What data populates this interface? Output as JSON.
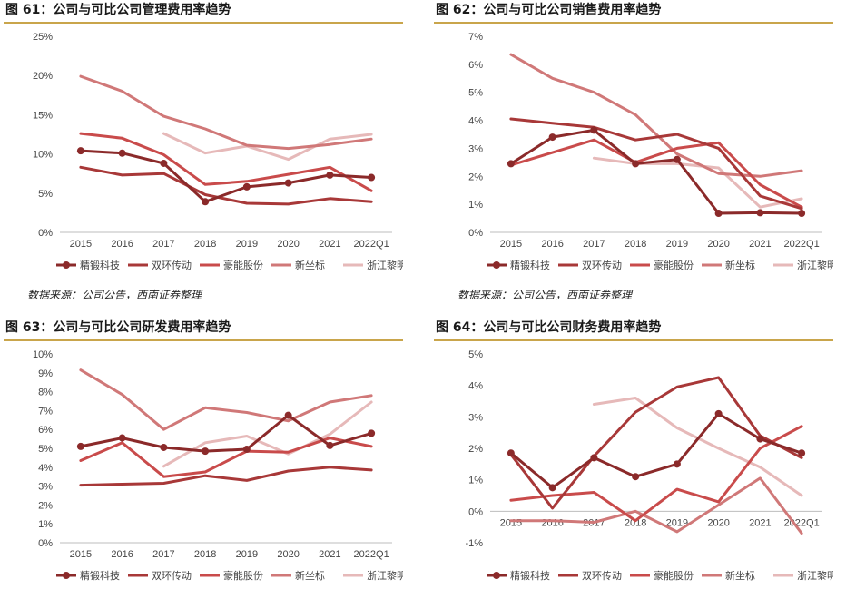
{
  "source_note": "数据来源：公司公告，西南证券整理",
  "series_colors": [
    "#8b2a2a",
    "#a83838",
    "#c94b4b",
    "#d07878",
    "#e6b9b9"
  ],
  "chart_data": [
    {
      "type": "line",
      "title": "图 61：公司与可比公司管理费用率趋势",
      "categories": [
        "2015",
        "2016",
        "2017",
        "2018",
        "2019",
        "2020",
        "2021",
        "2022Q1"
      ],
      "ylim": [
        0,
        25
      ],
      "yticks": [
        "0%",
        "5%",
        "10%",
        "15%",
        "20%",
        "25%"
      ],
      "series": [
        {
          "name": "精锻科技",
          "values": [
            10.4,
            10.1,
            8.8,
            3.9,
            5.8,
            6.3,
            7.3,
            7.0
          ],
          "marker": true
        },
        {
          "name": "双环传动",
          "values": [
            8.3,
            7.3,
            7.5,
            4.8,
            3.7,
            3.6,
            4.3,
            3.9
          ],
          "marker": false
        },
        {
          "name": "豪能股份",
          "values": [
            12.6,
            12.0,
            9.9,
            6.1,
            6.5,
            7.4,
            8.3,
            5.3
          ],
          "marker": false
        },
        {
          "name": "新坐标",
          "values": [
            19.9,
            18.0,
            14.8,
            13.2,
            11.1,
            10.7,
            11.2,
            11.9
          ],
          "marker": false
        },
        {
          "name": "浙江黎明",
          "values": [
            null,
            null,
            12.6,
            10.1,
            11.0,
            9.3,
            11.9,
            12.5
          ],
          "marker": false
        }
      ]
    },
    {
      "type": "line",
      "title": "图 62：公司与可比公司销售费用率趋势",
      "categories": [
        "2015",
        "2016",
        "2017",
        "2018",
        "2019",
        "2020",
        "2021",
        "2022Q1"
      ],
      "ylim": [
        0,
        7
      ],
      "yticks": [
        "0%",
        "1%",
        "2%",
        "3%",
        "4%",
        "5%",
        "6%",
        "7%"
      ],
      "series": [
        {
          "name": "精锻科技",
          "values": [
            2.45,
            3.4,
            3.65,
            2.45,
            2.6,
            0.68,
            0.7,
            0.68
          ],
          "marker": true
        },
        {
          "name": "双环传动",
          "values": [
            4.05,
            3.9,
            3.75,
            3.3,
            3.5,
            3.0,
            1.3,
            0.85
          ],
          "marker": false
        },
        {
          "name": "豪能股份",
          "values": [
            2.4,
            2.85,
            3.3,
            2.5,
            3.0,
            3.2,
            1.7,
            0.9
          ],
          "marker": false
        },
        {
          "name": "新坐标",
          "values": [
            6.35,
            5.5,
            5.0,
            4.2,
            2.8,
            2.1,
            2.0,
            2.2
          ],
          "marker": false
        },
        {
          "name": "浙江黎明",
          "values": [
            null,
            null,
            2.65,
            2.45,
            2.45,
            2.3,
            0.9,
            1.2
          ],
          "marker": false
        }
      ]
    },
    {
      "type": "line",
      "title": "图 63：公司与可比公司研发费用率趋势",
      "categories": [
        "2015",
        "2016",
        "2017",
        "2018",
        "2019",
        "2020",
        "2021",
        "2022Q1"
      ],
      "ylim": [
        0,
        10
      ],
      "yticks": [
        "0%",
        "1%",
        "2%",
        "3%",
        "4%",
        "5%",
        "6%",
        "7%",
        "8%",
        "9%",
        "10%"
      ],
      "series": [
        {
          "name": "精锻科技",
          "values": [
            5.1,
            5.55,
            5.05,
            4.85,
            4.95,
            6.75,
            5.15,
            5.8
          ],
          "marker": true
        },
        {
          "name": "双环传动",
          "values": [
            3.05,
            3.1,
            3.15,
            3.55,
            3.3,
            3.8,
            4.0,
            3.85
          ],
          "marker": false
        },
        {
          "name": "豪能股份",
          "values": [
            4.35,
            5.3,
            3.5,
            3.75,
            4.85,
            4.8,
            5.55,
            5.1
          ],
          "marker": false
        },
        {
          "name": "新坐标",
          "values": [
            9.15,
            7.85,
            6.0,
            7.15,
            6.9,
            6.45,
            7.45,
            7.8
          ],
          "marker": false
        },
        {
          "name": "浙江黎明",
          "values": [
            null,
            null,
            4.05,
            5.3,
            5.65,
            4.7,
            5.75,
            7.45
          ],
          "marker": false
        }
      ]
    },
    {
      "type": "line",
      "title": "图 64：公司与可比公司财务费用率趋势",
      "categories": [
        "2015",
        "2016",
        "2017",
        "2018",
        "2019",
        "2020",
        "2021",
        "2022Q1"
      ],
      "ylim": [
        -1,
        5
      ],
      "yticks": [
        "-1%",
        "0%",
        "1%",
        "2%",
        "3%",
        "4%",
        "5%"
      ],
      "series": [
        {
          "name": "精锻科技",
          "values": [
            1.85,
            0.75,
            1.7,
            1.1,
            1.5,
            3.1,
            2.3,
            1.85
          ],
          "marker": true
        },
        {
          "name": "双环传动",
          "values": [
            1.8,
            0.1,
            1.75,
            3.15,
            3.95,
            4.25,
            2.4,
            1.7
          ],
          "marker": false
        },
        {
          "name": "豪能股份",
          "values": [
            0.35,
            0.5,
            0.6,
            -0.3,
            0.7,
            0.3,
            2.0,
            2.7
          ],
          "marker": false
        },
        {
          "name": "新坐标",
          "values": [
            -0.3,
            -0.3,
            -0.35,
            0.0,
            -0.65,
            0.2,
            1.05,
            -0.7
          ],
          "marker": false
        },
        {
          "name": "浙江黎明",
          "values": [
            null,
            null,
            3.4,
            3.6,
            2.65,
            2.0,
            1.4,
            0.5
          ],
          "marker": false
        }
      ]
    }
  ]
}
